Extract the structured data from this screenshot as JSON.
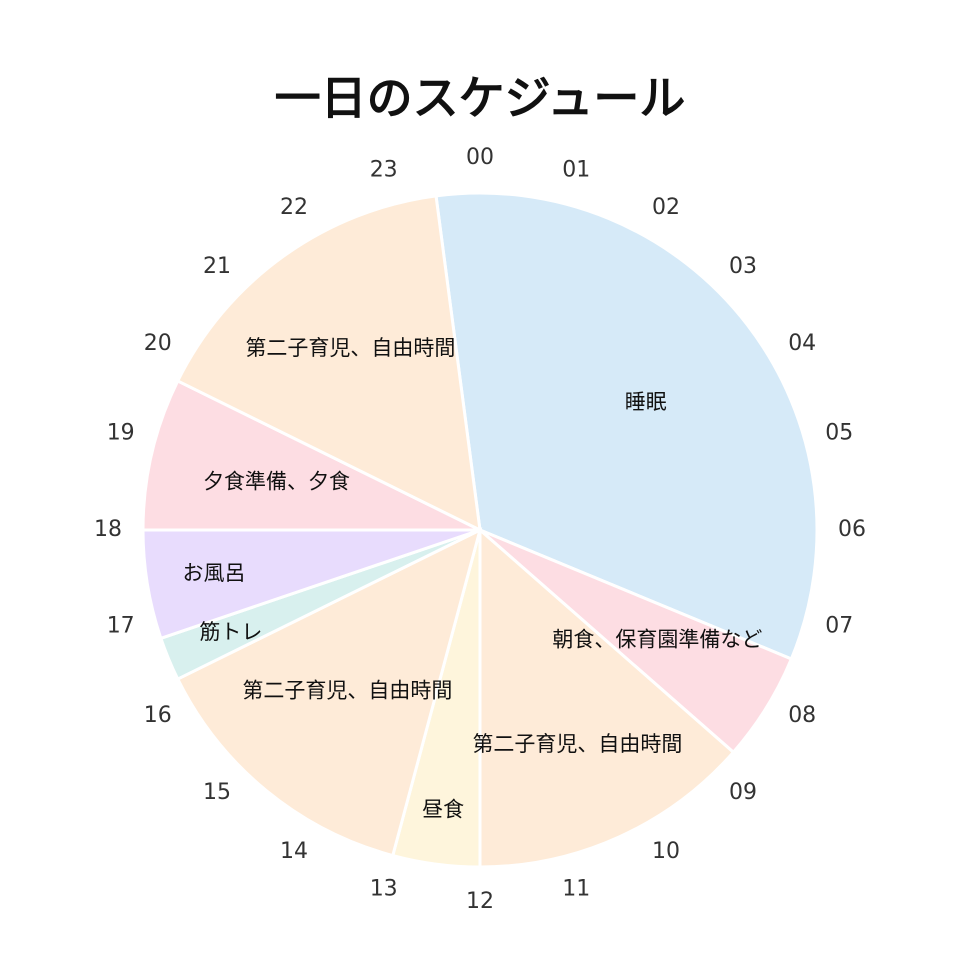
{
  "chart_data": {
    "type": "pie",
    "title": "一日のスケジュール",
    "unit": "hour",
    "hour_ticks": [
      "00",
      "01",
      "02",
      "03",
      "04",
      "05",
      "06",
      "07",
      "08",
      "09",
      "10",
      "11",
      "12",
      "13",
      "14",
      "15",
      "16",
      "17",
      "18",
      "19",
      "20",
      "21",
      "22",
      "23"
    ],
    "slices": [
      {
        "label": "睡眠",
        "start": -0.5,
        "end": 7.5,
        "color": "#d6eaf8"
      },
      {
        "label": "朝食、保育園準備など",
        "start": 7.5,
        "end": 8.75,
        "color": "#fddde3"
      },
      {
        "label": "第二子育児、自由時間",
        "start": 8.75,
        "end": 12.0,
        "color": "#feebd8"
      },
      {
        "label": "昼食",
        "start": 12.0,
        "end": 13.0,
        "color": "#fef5dc"
      },
      {
        "label": "第二子育児、自由時間",
        "start": 13.0,
        "end": 16.25,
        "color": "#feebd8"
      },
      {
        "label": "筋トレ",
        "start": 16.25,
        "end": 16.75,
        "color": "#d8f0ee"
      },
      {
        "label": "お風呂",
        "start": 16.75,
        "end": 18.0,
        "color": "#e8dcfd"
      },
      {
        "label": "夕食準備、夕食",
        "start": 18.0,
        "end": 19.75,
        "color": "#fddde3"
      },
      {
        "label": "第二子育児、自由時間",
        "start": 19.75,
        "end": 23.5,
        "color": "#feebd8"
      }
    ]
  }
}
